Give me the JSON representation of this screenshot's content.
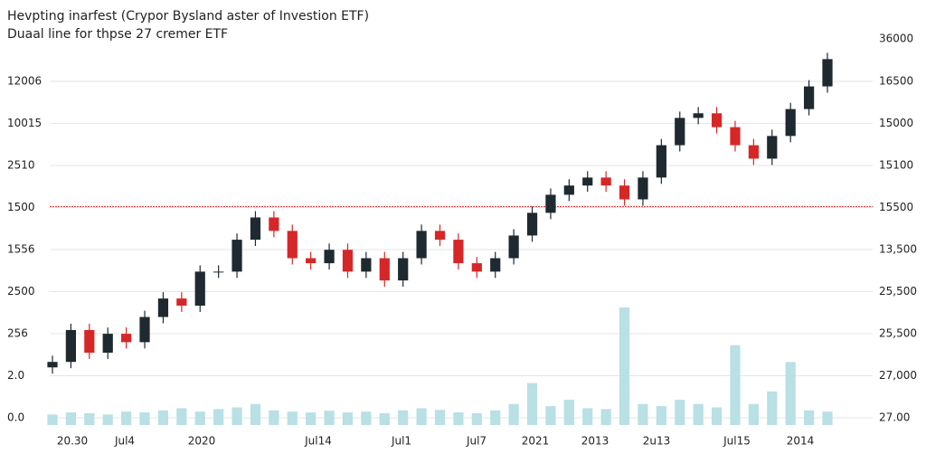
{
  "chart_data": {
    "type": "candlestick",
    "title": "Hevpting inarfest (Crypor Bysland aster of Investion ETF)",
    "subtitle": "Duaal line for thpse 27 cremer ETF",
    "y_labels": [
      "12006",
      "10015",
      "2510",
      "1500",
      "1556",
      "2500",
      "256",
      "2.0",
      "0.0"
    ],
    "y2_labels": [
      "36000",
      "16500",
      "15000",
      "15100",
      "15500",
      "13,500",
      "25,500",
      "25,500",
      "27,000",
      "27.00"
    ],
    "x_labels": [
      "20.30",
      "Jul4",
      "2020",
      "Jul14",
      "Jul1",
      "Jul7",
      "2021",
      "2013",
      "2u13",
      "Jul15",
      "2014"
    ],
    "ylim": [
      0,
      90
    ],
    "reference_line": 50.3,
    "up_color": "#1e2a30",
    "down_color": "#d62728",
    "volume_color": "#b9e0e4",
    "reference_color": "#d62728",
    "open": [
      12,
      13.3,
      20.9,
      15.5,
      20,
      18,
      24,
      28.4,
      26.7,
      34.8,
      34.8,
      42.4,
      47.7,
      44.5,
      38,
      36.8,
      40,
      34.8,
      38,
      32.7,
      38,
      44.5,
      42.4,
      36.8,
      34.8,
      38,
      43.4,
      48.8,
      53.1,
      55.3,
      57.2,
      55.3,
      52,
      57.2,
      64.9,
      71.4,
      72.5,
      69.2,
      64.9,
      61.7,
      67.1,
      73.5,
      78.9
    ],
    "high": [
      14.8,
      22.4,
      22.4,
      21.5,
      21.5,
      25.5,
      29.9,
      29.9,
      36.3,
      36.3,
      43.9,
      49.2,
      49.2,
      46,
      39.5,
      41.5,
      41.5,
      39.5,
      39.5,
      39.5,
      46,
      46,
      43.9,
      38.3,
      39.5,
      44.9,
      50.3,
      54.6,
      56.8,
      58.7,
      58.7,
      56.8,
      58.7,
      66.4,
      72.9,
      74,
      74,
      70.7,
      66.4,
      68.6,
      75,
      80.4,
      86.9
    ],
    "low": [
      10.5,
      11.8,
      14,
      14,
      16.5,
      16.5,
      22.5,
      25.2,
      25.2,
      33.3,
      33.3,
      40.9,
      43,
      36.5,
      35.3,
      35.3,
      33.3,
      33.3,
      31.2,
      31.2,
      36.5,
      40.9,
      35.3,
      33.3,
      33.3,
      36.5,
      41.9,
      47.3,
      51.6,
      53.8,
      53.8,
      50.5,
      50.5,
      55.7,
      63.4,
      69.9,
      67.7,
      63.4,
      60.2,
      60.2,
      65.6,
      72,
      77.4
    ],
    "close": [
      13.3,
      20.9,
      15.5,
      20,
      18,
      24,
      28.4,
      26.7,
      34.8,
      34.8,
      42.4,
      47.7,
      44.5,
      38,
      36.8,
      40,
      34.8,
      38,
      32.7,
      38,
      44.5,
      42.4,
      36.8,
      34.8,
      38,
      43.4,
      48.8,
      53.1,
      55.3,
      57.2,
      55.3,
      52,
      57.2,
      64.9,
      71.4,
      72.5,
      69.2,
      64.9,
      61.7,
      67.1,
      73.5,
      78.9,
      85.4
    ],
    "volume": [
      2.5,
      3,
      2.8,
      2.5,
      3.2,
      3,
      3.5,
      4,
      3.2,
      3.8,
      4.2,
      5,
      3.5,
      3.2,
      3,
      3.4,
      3,
      3.2,
      2.8,
      3.5,
      4,
      3.6,
      3,
      2.8,
      3.5,
      5,
      10,
      4.5,
      6,
      4,
      3.8,
      28,
      5,
      4.5,
      6,
      5,
      4.2,
      19,
      5,
      8,
      15,
      3.5,
      3.2
    ]
  }
}
